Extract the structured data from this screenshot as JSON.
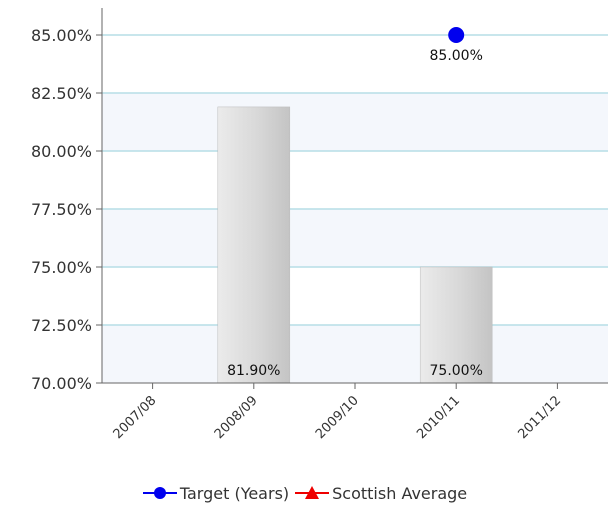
{
  "chart_data": {
    "type": "bar",
    "categories": [
      "2007/08",
      "2008/09",
      "2009/10",
      "2010/11",
      "2011/12"
    ],
    "series": [
      {
        "name": "",
        "kind": "bar",
        "values": [
          null,
          81.9,
          null,
          75.0,
          null
        ],
        "labels": [
          "",
          "81.90%",
          "",
          "75.00%",
          ""
        ]
      },
      {
        "name": "Target (Years)",
        "kind": "marker",
        "marker": "circle",
        "color": "#0000ee",
        "values": [
          null,
          null,
          null,
          85.0,
          null
        ],
        "labels": [
          "",
          "",
          "",
          "85.00%",
          ""
        ]
      },
      {
        "name": "Scottish Average",
        "kind": "marker",
        "marker": "triangle",
        "color": "#ee0000",
        "values": [
          null,
          null,
          null,
          null,
          null
        ]
      }
    ],
    "yticks": [
      "70.00%",
      "72.50%",
      "75.00%",
      "77.50%",
      "80.00%",
      "82.50%",
      "85.00%"
    ],
    "ylim": [
      70,
      86
    ],
    "grid": true,
    "legend": "bottom"
  }
}
